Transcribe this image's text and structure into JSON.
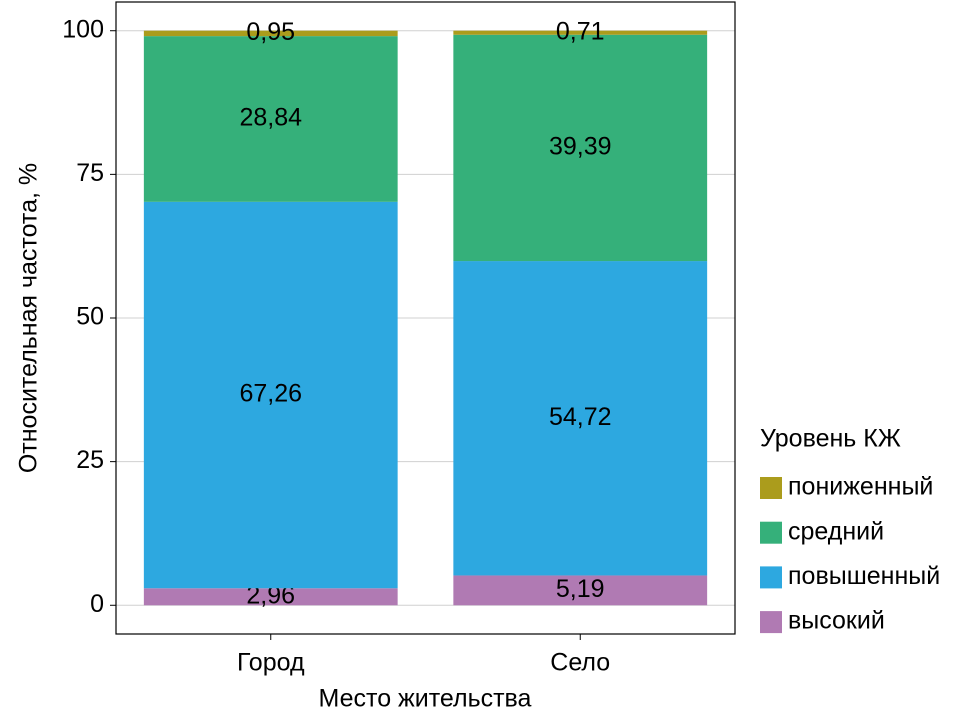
{
  "chart_data": {
    "type": "stacked-bar",
    "x_label": "Место жительства",
    "y_label": "Относительная частота, %",
    "legend_title": "Уровень КЖ",
    "categories": [
      "Город",
      "Село"
    ],
    "series": [
      {
        "name": "высокий",
        "color": "#b07ab3",
        "values": [
          2.96,
          5.19
        ],
        "value_labels": [
          "2,96",
          "5,19"
        ]
      },
      {
        "name": "повышенный",
        "color": "#2da8e0",
        "values": [
          67.26,
          54.72
        ],
        "value_labels": [
          "67,26",
          "54,72"
        ]
      },
      {
        "name": "средний",
        "color": "#35b07a",
        "values": [
          28.84,
          39.39
        ],
        "value_labels": [
          "28,84",
          "39,39"
        ]
      },
      {
        "name": "пониженный",
        "color": "#ab9c1c",
        "values": [
          0.95,
          0.71
        ],
        "value_labels": [
          "0,95",
          "0,71"
        ]
      }
    ],
    "ylim": [
      -5,
      105
    ],
    "yticks": [
      0,
      25,
      50,
      75,
      100
    ],
    "grid": true,
    "legend_position": "right"
  }
}
